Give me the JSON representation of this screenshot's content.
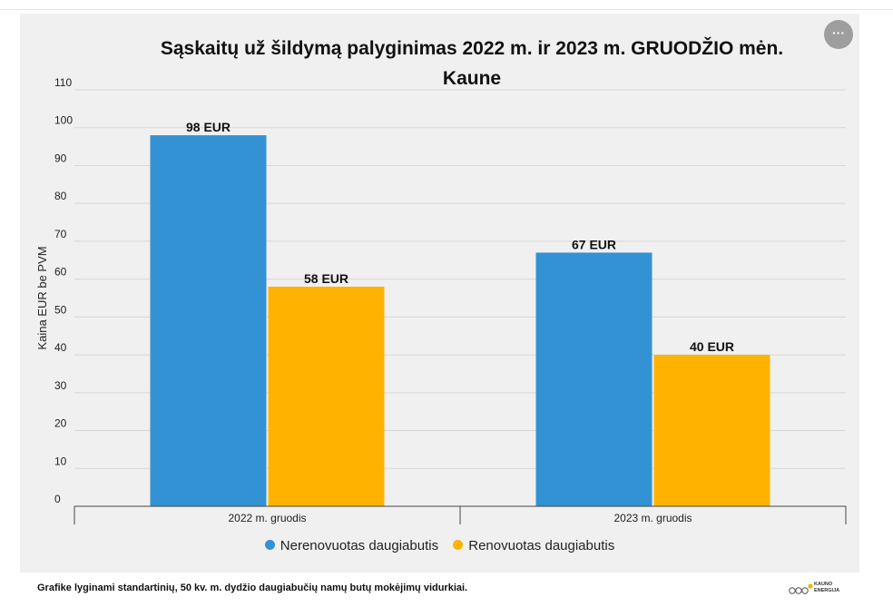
{
  "title": "Sąskaitų už šildymą palyginimas 2022 m. ir 2023 m. GRUODŽIO mėn. Kaune",
  "menu_button_label": "···",
  "footnote": "Grafike lyginami standartinių, 50 kv. m. dydžio daugiabučių namų butų mokėjimų vidurkiai.",
  "logo": {
    "line1": "KAUNO",
    "line2": "ENERGIJA",
    "accent": "#f4b400"
  },
  "colors": {
    "background": "#f0f0f0",
    "series1": "#3392d3",
    "series2": "#ffb300",
    "grid": "#d6d6d6"
  },
  "chart_data": {
    "type": "bar",
    "title": "Sąskaitų už šildymą palyginimas 2022 m. ir 2023 m. GRUODŽIO mėn. Kaune",
    "xlabel": "",
    "ylabel": "Kaina EUR be PVM",
    "ylim": [
      0,
      110
    ],
    "yticks": [
      0,
      10,
      20,
      30,
      40,
      50,
      60,
      70,
      80,
      90,
      100,
      110
    ],
    "categories": [
      "2022 m. gruodis",
      "2023 m. gruodis"
    ],
    "series": [
      {
        "name": "Nerenovuotas daugiabutis",
        "values": [
          98,
          67
        ],
        "labels": [
          "98 EUR",
          "67 EUR"
        ],
        "color": "#3392d3"
      },
      {
        "name": "Renovuotas daugiabutis",
        "values": [
          58,
          40
        ],
        "labels": [
          "58 EUR",
          "40 EUR"
        ],
        "color": "#ffb300"
      }
    ],
    "grid": true,
    "legend": "bottom"
  }
}
